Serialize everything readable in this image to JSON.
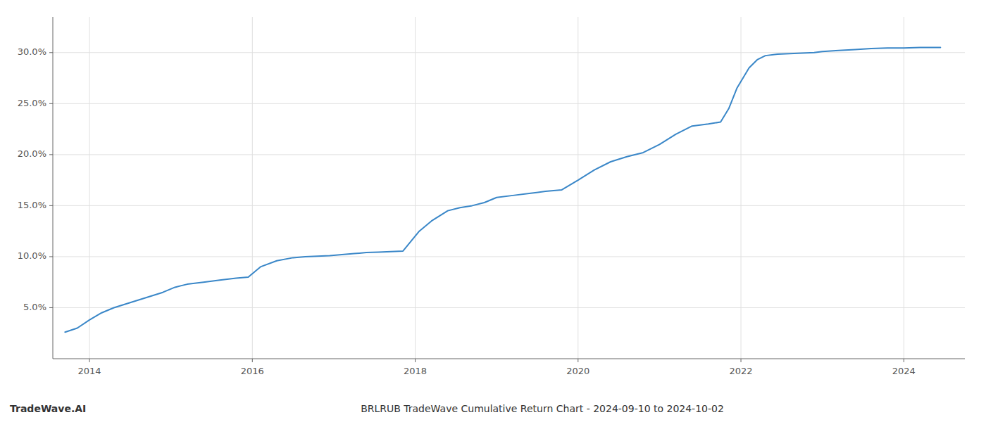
{
  "chart_data": {
    "type": "line",
    "title": "BRLRUB TradeWave Cumulative Return Chart - 2024-09-10 to 2024-10-02",
    "annotations": [
      "TradeWave.AI"
    ],
    "color": "#3a87c8",
    "grid": true,
    "x": [
      2013.7,
      2013.85,
      2014.0,
      2014.15,
      2014.3,
      2014.5,
      2014.7,
      2014.9,
      2015.05,
      2015.2,
      2015.4,
      2015.6,
      2015.8,
      2015.95,
      2016.1,
      2016.3,
      2016.5,
      2016.65,
      2016.8,
      2016.95,
      2017.1,
      2017.25,
      2017.4,
      2017.55,
      2017.7,
      2017.85,
      2018.05,
      2018.2,
      2018.4,
      2018.55,
      2018.7,
      2018.85,
      2019.0,
      2019.2,
      2019.4,
      2019.6,
      2019.8,
      2020.0,
      2020.2,
      2020.4,
      2020.6,
      2020.8,
      2021.0,
      2021.2,
      2021.4,
      2021.6,
      2021.75,
      2021.85,
      2021.95,
      2022.1,
      2022.2,
      2022.3,
      2022.45,
      2022.6,
      2022.75,
      2022.9,
      2023.0,
      2023.2,
      2023.4,
      2023.6,
      2023.8,
      2024.0,
      2024.2,
      2024.45
    ],
    "values": [
      2.6,
      3.0,
      3.8,
      4.5,
      5.0,
      5.5,
      6.0,
      6.5,
      7.0,
      7.3,
      7.5,
      7.7,
      7.9,
      8.0,
      9.0,
      9.6,
      9.9,
      10.0,
      10.05,
      10.1,
      10.2,
      10.3,
      10.4,
      10.45,
      10.5,
      10.55,
      12.5,
      13.5,
      14.5,
      14.8,
      15.0,
      15.3,
      15.8,
      16.0,
      16.2,
      16.4,
      16.55,
      17.5,
      18.5,
      19.3,
      19.8,
      20.2,
      21.0,
      22.0,
      22.8,
      23.0,
      23.2,
      24.5,
      26.5,
      28.5,
      29.3,
      29.7,
      29.85,
      29.9,
      29.95,
      30.0,
      30.1,
      30.2,
      30.3,
      30.4,
      30.45,
      30.45,
      30.5,
      30.5
    ],
    "xlim": [
      2013.55,
      2024.75
    ],
    "ylim": [
      0.0,
      33.5
    ],
    "xticks": [
      2014,
      2016,
      2018,
      2020,
      2022,
      2024
    ],
    "yticks": [
      {
        "value": 5.0,
        "label": "5.0%"
      },
      {
        "value": 10.0,
        "label": "10.0%"
      },
      {
        "value": 15.0,
        "label": "15.0%"
      },
      {
        "value": 20.0,
        "label": "20.0%"
      },
      {
        "value": 25.0,
        "label": "25.0%"
      },
      {
        "value": 30.0,
        "label": "30.0%"
      }
    ]
  }
}
